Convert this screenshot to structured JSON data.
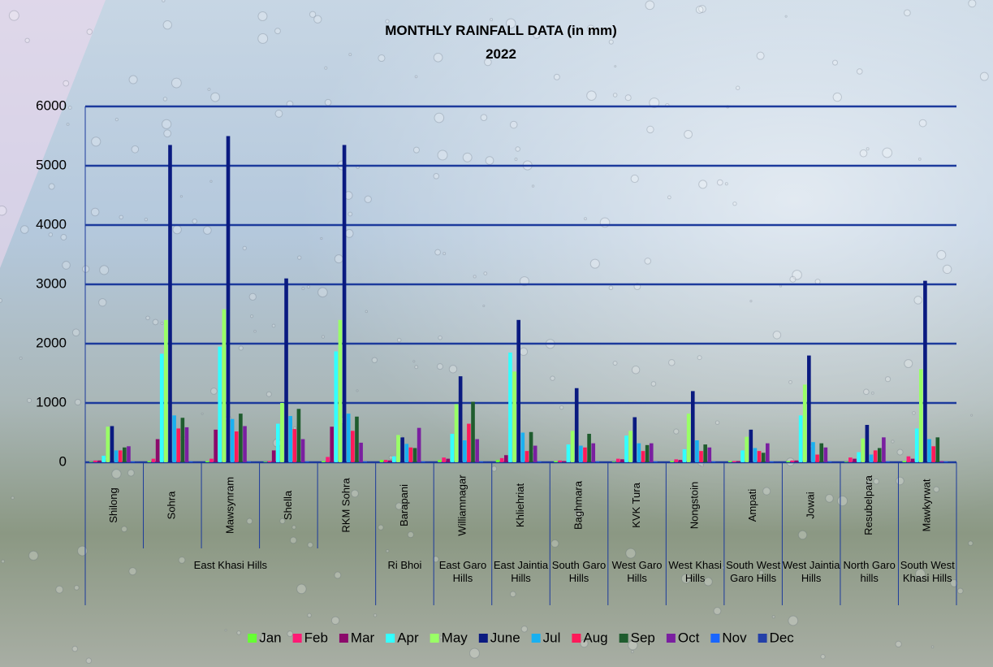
{
  "chart_data": {
    "type": "bar",
    "title": "MONTHLY RAINFALL DATA (in mm)",
    "subtitle": "2022",
    "groups": [
      {
        "name": "East Khasi Hills",
        "categories": [
          "Shilong",
          "Sohra",
          "Mawsynram",
          "Shella",
          "RKM Sohra"
        ]
      },
      {
        "name": "Ri Bhoi",
        "categories": [
          "Barapani"
        ]
      },
      {
        "name": "East Garo Hills",
        "categories": [
          "Williamnagar"
        ]
      },
      {
        "name": "East Jaintia Hills",
        "categories": [
          "Khliehriat"
        ]
      },
      {
        "name": "South Garo Hills",
        "categories": [
          "Baghmara"
        ]
      },
      {
        "name": "West Garo Hills",
        "categories": [
          "KVK Tura"
        ]
      },
      {
        "name": "West Khasi Hills",
        "categories": [
          "Nongstoin"
        ]
      },
      {
        "name": "South West Garo Hills",
        "categories": [
          "Ampati"
        ]
      },
      {
        "name": "West Jaintia Hills",
        "categories": [
          "Jowai"
        ]
      },
      {
        "name": "North Garo hills",
        "categories": [
          "Resubelpara"
        ]
      },
      {
        "name": "South West Khasi Hills",
        "categories": [
          "Mawkyrwat"
        ]
      }
    ],
    "series": [
      {
        "name": "Jan",
        "color": "#66ff33",
        "values": [
          10,
          20,
          20,
          10,
          20,
          40,
          40,
          40,
          20,
          10,
          20,
          20,
          20,
          10,
          20
        ]
      },
      {
        "name": "Feb",
        "color": "#ff1a75",
        "values": [
          30,
          60,
          60,
          20,
          90,
          40,
          80,
          70,
          30,
          60,
          50,
          20,
          30,
          80,
          100
        ]
      },
      {
        "name": "Mar",
        "color": "#8b0a6b",
        "values": [
          30,
          390,
          550,
          200,
          600,
          30,
          60,
          120,
          20,
          50,
          40,
          20,
          30,
          60,
          60
        ]
      },
      {
        "name": "Apr",
        "color": "#33ffff",
        "values": [
          110,
          1830,
          1950,
          650,
          1870,
          100,
          480,
          1850,
          300,
          450,
          220,
          200,
          790,
          170,
          570
        ]
      },
      {
        "name": "May",
        "color": "#99ff66",
        "values": [
          600,
          2400,
          2580,
          1000,
          2400,
          460,
          980,
          1530,
          530,
          530,
          820,
          430,
          1310,
          400,
          1570
        ]
      },
      {
        "name": "June",
        "color": "#0a1a80",
        "values": [
          610,
          5350,
          5500,
          3100,
          5350,
          420,
          1450,
          2400,
          1250,
          760,
          1200,
          550,
          1800,
          630,
          3060
        ]
      },
      {
        "name": "Jul",
        "color": "#1ab0f0",
        "values": [
          200,
          790,
          730,
          780,
          820,
          310,
          370,
          500,
          280,
          320,
          370,
          240,
          340,
          130,
          390
        ]
      },
      {
        "name": "Aug",
        "color": "#ff1a5a",
        "values": [
          200,
          570,
          520,
          560,
          530,
          250,
          650,
          190,
          250,
          190,
          190,
          190,
          130,
          200,
          270
        ]
      },
      {
        "name": "Sep",
        "color": "#1f5c2e",
        "values": [
          250,
          750,
          820,
          900,
          770,
          240,
          1020,
          510,
          480,
          290,
          300,
          160,
          320,
          240,
          420
        ]
      },
      {
        "name": "Oct",
        "color": "#7a1fa0",
        "values": [
          270,
          590,
          610,
          390,
          330,
          580,
          390,
          280,
          320,
          320,
          250,
          320,
          250,
          420,
          20
        ]
      },
      {
        "name": "Nov",
        "color": "#1a66ff",
        "values": [
          10,
          10,
          10,
          10,
          10,
          10,
          10,
          10,
          10,
          10,
          10,
          10,
          10,
          10,
          10
        ]
      },
      {
        "name": "Dec",
        "color": "#2440a8",
        "values": [
          5,
          5,
          5,
          5,
          5,
          5,
          5,
          5,
          5,
          5,
          5,
          5,
          5,
          5,
          5
        ]
      }
    ],
    "ylim": [
      0,
      6000
    ],
    "yticks": [
      0,
      1000,
      2000,
      3000,
      4000,
      5000,
      6000
    ],
    "grid": true,
    "legend": "bottom"
  }
}
